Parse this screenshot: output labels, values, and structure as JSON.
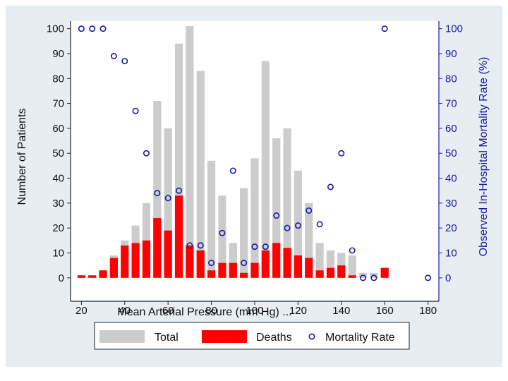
{
  "chart_data": {
    "type": "bar",
    "title": "",
    "xlabel": "Mean Arterial Pressure (mm Hg) ...",
    "ylabel": "Number of Patients",
    "ylabel_right": "Observed In-Hospital Mortality Rate (%)",
    "xlim": [
      15,
      185
    ],
    "ylim": [
      0,
      105
    ],
    "ylim_right": [
      0,
      105
    ],
    "x_ticks": [
      20,
      40,
      60,
      80,
      100,
      120,
      140,
      160,
      180
    ],
    "y_ticks": [
      0,
      10,
      20,
      30,
      40,
      50,
      60,
      70,
      80,
      90,
      100
    ],
    "y_right_ticks": [
      0,
      10,
      20,
      30,
      40,
      50,
      60,
      70,
      80,
      90,
      100
    ],
    "x": [
      20,
      25,
      30,
      35,
      40,
      45,
      50,
      55,
      60,
      65,
      70,
      75,
      80,
      85,
      90,
      95,
      100,
      105,
      110,
      115,
      120,
      125,
      130,
      135,
      140,
      145,
      150,
      155,
      160,
      180
    ],
    "series": [
      {
        "name": "Total",
        "color": "#cccccc",
        "values": [
          1,
          1,
          3,
          9,
          15,
          21,
          30,
          71,
          60,
          94,
          101,
          83,
          47,
          33,
          14,
          36,
          48,
          87,
          56,
          60,
          43,
          30,
          14,
          11,
          10,
          9,
          2,
          2,
          4,
          0
        ]
      },
      {
        "name": "Deaths",
        "color": "#ff0000",
        "values": [
          1,
          1,
          3,
          8,
          13,
          14,
          15,
          24,
          19,
          33,
          13,
          11,
          3,
          6,
          6,
          2,
          6,
          11,
          14,
          12,
          9,
          8,
          3,
          4,
          5,
          1,
          0,
          0,
          4,
          0
        ]
      },
      {
        "name": "Mortality Rate",
        "color": "#1a1aa6",
        "marker": "hollow-circle",
        "axis": "right",
        "values": [
          100,
          100,
          100,
          89,
          87,
          67,
          50,
          34,
          32,
          35,
          13,
          13,
          6,
          18,
          43,
          6,
          12.5,
          12.5,
          25,
          20,
          21,
          27,
          21.5,
          36.5,
          50,
          11,
          0,
          0,
          100,
          0
        ]
      }
    ],
    "legend": {
      "position": "bottom",
      "items": [
        "Total",
        "Deaths",
        "Mortality Rate"
      ]
    }
  }
}
